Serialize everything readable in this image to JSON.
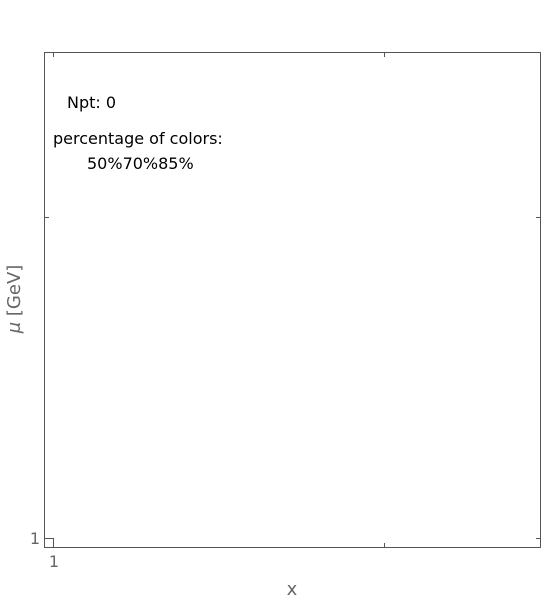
{
  "chart_data": {
    "type": "scatter",
    "title": "",
    "xlabel": "x",
    "ylabel_symbol": "μ",
    "ylabel_unit": "[GeV]",
    "x_tick_labels": [
      "1"
    ],
    "y_tick_labels": [
      "1"
    ],
    "series": [],
    "grid": false,
    "scale": "log",
    "annotations": {
      "npt": "Npt: 0",
      "percentage_title": "percentage of colors:",
      "percentages": [
        "50%",
        "70%",
        "85%"
      ]
    },
    "colors": {
      "frame": "#555555",
      "axis_text": "#666666",
      "annotation_text": "#000000",
      "background": "#ffffff"
    }
  }
}
